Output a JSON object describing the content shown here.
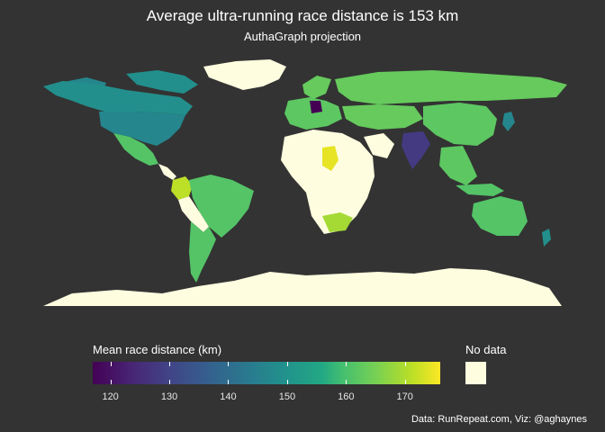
{
  "title": "Average ultra-running race distance is 153 km",
  "subtitle": "AuthaGraph projection",
  "legend": {
    "title": "Mean race distance (km)",
    "min": 117,
    "max": 176,
    "ticks": [
      "120",
      "130",
      "140",
      "150",
      "160",
      "170"
    ],
    "tick_values": [
      120,
      130,
      140,
      150,
      160,
      170
    ]
  },
  "no_data": {
    "label": "No data",
    "color": "#fffde0"
  },
  "caption": "Data: RunRepeat.com, Viz: @aghaynes",
  "colors": {
    "background": "#333333",
    "ocean": "#333333",
    "no_data_fill": "#fffde0"
  },
  "regions": [
    {
      "name": "Greenland",
      "value": null
    },
    {
      "name": "Canada",
      "value": 146
    },
    {
      "name": "United States",
      "value": 144
    },
    {
      "name": "Mexico",
      "value": 160
    },
    {
      "name": "Colombia",
      "value": 170
    },
    {
      "name": "Brazil",
      "value": 160
    },
    {
      "name": "Argentina",
      "value": 160
    },
    {
      "name": "Russia",
      "value": 162
    },
    {
      "name": "China",
      "value": 161
    },
    {
      "name": "Germany",
      "value": 117
    },
    {
      "name": "India",
      "value": 127
    },
    {
      "name": "Chad",
      "value": 174
    },
    {
      "name": "South Africa",
      "value": 168
    },
    {
      "name": "Australia",
      "value": 160
    },
    {
      "name": "New Zealand",
      "value": 146
    },
    {
      "name": "Africa (other)",
      "value": null
    },
    {
      "name": "Antarctica",
      "value": null
    }
  ]
}
